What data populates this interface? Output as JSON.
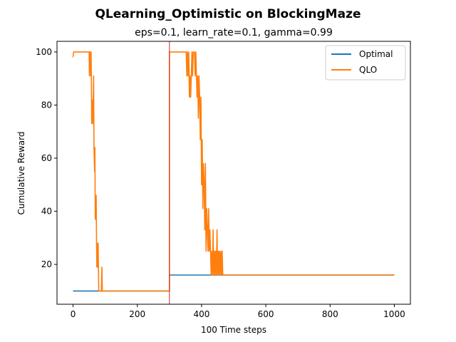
{
  "chart_data": {
    "type": "line",
    "title": "QLearning_Optimistic on BlockingMaze",
    "subtitle": "eps=0.1, learn_rate=0.1, gamma=0.99",
    "xlabel": "100 Time steps",
    "ylabel": "Cumulative Reward",
    "xlim": [
      -50,
      1050
    ],
    "ylim": [
      5,
      104
    ],
    "xticks": [
      0,
      200,
      400,
      600,
      800,
      1000
    ],
    "yticks": [
      20,
      40,
      60,
      80,
      100
    ],
    "grid": false,
    "legend_position": "top-right",
    "vline": {
      "x": 300,
      "color": "#d62728"
    },
    "series": [
      {
        "name": "Optimal",
        "color": "#1f77b4",
        "points": [
          [
            0,
            10
          ],
          [
            300,
            10
          ],
          [
            300,
            16
          ],
          [
            1000,
            16
          ]
        ]
      },
      {
        "name": "QLO",
        "color": "#ff7f0e",
        "points": [
          [
            0,
            98
          ],
          [
            2,
            100
          ],
          [
            50,
            100
          ],
          [
            51,
            91
          ],
          [
            52,
            100
          ],
          [
            54,
            100
          ],
          [
            55,
            91
          ],
          [
            56,
            100
          ],
          [
            57,
            91
          ],
          [
            58,
            73
          ],
          [
            60,
            82
          ],
          [
            62,
            73
          ],
          [
            64,
            91
          ],
          [
            65,
            64
          ],
          [
            67,
            55
          ],
          [
            68,
            64
          ],
          [
            69,
            37
          ],
          [
            70,
            46
          ],
          [
            71,
            37
          ],
          [
            72,
            46
          ],
          [
            73,
            28
          ],
          [
            74,
            19
          ],
          [
            75,
            28
          ],
          [
            76,
            19
          ],
          [
            78,
            28
          ],
          [
            80,
            10
          ],
          [
            85,
            10
          ],
          [
            88,
            10
          ],
          [
            90,
            19
          ],
          [
            91,
            10
          ],
          [
            100,
            10
          ],
          [
            300,
            10
          ],
          [
            300,
            100
          ],
          [
            352,
            100
          ],
          [
            354,
            91
          ],
          [
            356,
            100
          ],
          [
            358,
            91
          ],
          [
            360,
            100
          ],
          [
            362,
            83
          ],
          [
            364,
            91
          ],
          [
            366,
            83
          ],
          [
            368,
            91
          ],
          [
            370,
            100
          ],
          [
            372,
            91
          ],
          [
            374,
            100
          ],
          [
            378,
            100
          ],
          [
            380,
            91
          ],
          [
            382,
            100
          ],
          [
            384,
            91
          ],
          [
            386,
            83
          ],
          [
            388,
            91
          ],
          [
            390,
            75
          ],
          [
            392,
            91
          ],
          [
            394,
            83
          ],
          [
            396,
            67
          ],
          [
            398,
            83
          ],
          [
            400,
            50
          ],
          [
            402,
            67
          ],
          [
            404,
            41
          ],
          [
            406,
            58
          ],
          [
            408,
            50
          ],
          [
            410,
            33
          ],
          [
            412,
            58
          ],
          [
            414,
            25
          ],
          [
            416,
            41
          ],
          [
            418,
            33
          ],
          [
            420,
            25
          ],
          [
            422,
            41
          ],
          [
            424,
            25
          ],
          [
            426,
            33
          ],
          [
            428,
            25
          ],
          [
            430,
            16
          ],
          [
            432,
            25
          ],
          [
            434,
            16
          ],
          [
            436,
            33
          ],
          [
            438,
            16
          ],
          [
            440,
            25
          ],
          [
            442,
            16
          ],
          [
            444,
            25
          ],
          [
            446,
            16
          ],
          [
            448,
            33
          ],
          [
            450,
            16
          ],
          [
            452,
            25
          ],
          [
            454,
            16
          ],
          [
            456,
            25
          ],
          [
            458,
            16
          ],
          [
            460,
            25
          ],
          [
            462,
            16
          ],
          [
            464,
            25
          ],
          [
            466,
            16
          ],
          [
            470,
            16
          ],
          [
            1000,
            16
          ]
        ]
      }
    ]
  }
}
